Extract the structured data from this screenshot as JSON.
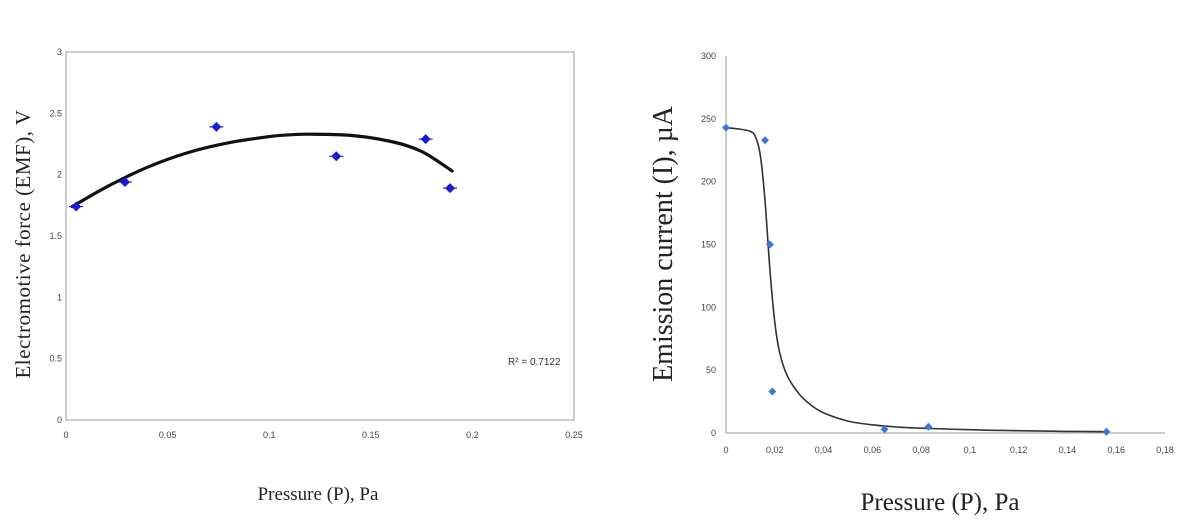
{
  "chart_data": [
    {
      "type": "scatter",
      "ylabel": "Electromotive force (EMF), V",
      "xlabel": "Pressure (P), Pa",
      "xlim": [
        0,
        0.25
      ],
      "ylim": [
        0,
        3
      ],
      "x_ticks": [
        "0",
        "0.05",
        "0.1",
        "0.15",
        "0.2",
        "0.25"
      ],
      "y_ticks": [
        "0",
        "0.5",
        "1",
        "1.5",
        "2",
        "2.5",
        "3"
      ],
      "annotation": "R² = 0.7122",
      "marker_color": "#1a1ad6",
      "trend_color": "#111111",
      "points": [
        {
          "x": 0.005,
          "y": 1.74
        },
        {
          "x": 0.029,
          "y": 1.94
        },
        {
          "x": 0.074,
          "y": 2.39
        },
        {
          "x": 0.133,
          "y": 2.15
        },
        {
          "x": 0.177,
          "y": 2.29
        },
        {
          "x": 0.189,
          "y": 1.89
        }
      ],
      "trendline": {
        "type": "polynomial",
        "x": [
          0.003,
          0.02,
          0.04,
          0.06,
          0.08,
          0.1,
          0.11,
          0.12,
          0.14,
          0.16,
          0.175,
          0.19
        ],
        "y": [
          1.74,
          1.9,
          2.06,
          2.18,
          2.26,
          2.31,
          2.325,
          2.33,
          2.32,
          2.27,
          2.19,
          2.03
        ]
      }
    },
    {
      "type": "scatter",
      "ylabel": "Emission current (I), µA",
      "xlabel": "Pressure (P), Pa",
      "xlim": [
        0,
        0.18
      ],
      "ylim": [
        0,
        300
      ],
      "x_ticks": [
        "0",
        "0,02",
        "0,04",
        "0,06",
        "0,08",
        "0,1",
        "0,12",
        "0,14",
        "0,16",
        "0,18"
      ],
      "y_ticks": [
        "0",
        "50",
        "100",
        "150",
        "200",
        "250",
        "300"
      ],
      "marker_color": "#3c78d8",
      "trend_color": "#333333",
      "points": [
        {
          "x": 0.0,
          "y": 243
        },
        {
          "x": 0.016,
          "y": 233
        },
        {
          "x": 0.018,
          "y": 150
        },
        {
          "x": 0.019,
          "y": 33
        },
        {
          "x": 0.065,
          "y": 3
        },
        {
          "x": 0.083,
          "y": 5
        },
        {
          "x": 0.156,
          "y": 1
        }
      ],
      "trendline": {
        "type": "sigmoid",
        "x": [
          0,
          0.005,
          0.01,
          0.012,
          0.014,
          0.016,
          0.018,
          0.02,
          0.022,
          0.025,
          0.03,
          0.035,
          0.04,
          0.05,
          0.06,
          0.07,
          0.08,
          0.1,
          0.12,
          0.14,
          0.156
        ],
        "y": [
          243,
          242,
          240,
          236,
          222,
          185,
          130,
          88,
          64,
          46,
          31,
          22,
          16,
          9.5,
          6.5,
          4.8,
          3.8,
          2.6,
          1.8,
          1.3,
          1.0
        ]
      }
    }
  ]
}
